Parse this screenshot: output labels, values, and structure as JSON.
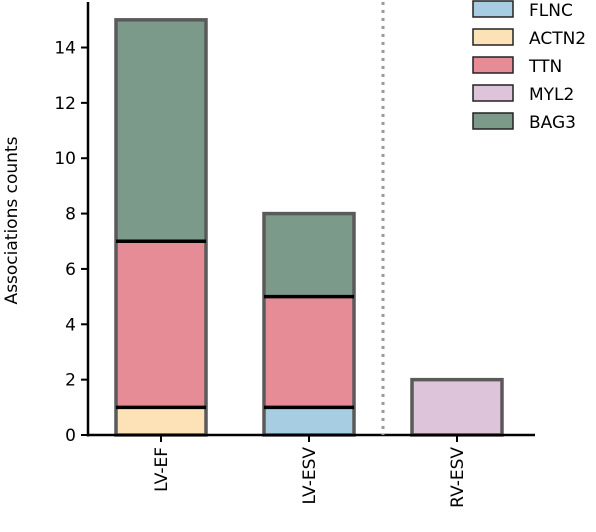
{
  "chart_data": {
    "type": "bar",
    "stacked": true,
    "categories": [
      "LV-EF",
      "LV-ESV",
      "RV-ESV"
    ],
    "series": [
      {
        "name": "FLNC",
        "color": "#a6cde1",
        "values": [
          0,
          1,
          0
        ]
      },
      {
        "name": "ACTN2",
        "color": "#fde2b8",
        "values": [
          1,
          0,
          0
        ]
      },
      {
        "name": "TTN",
        "color": "#e68c97",
        "values": [
          6,
          4,
          0
        ]
      },
      {
        "name": "MYL2",
        "color": "#ddc4da",
        "values": [
          0,
          0,
          2
        ]
      },
      {
        "name": "BAG3",
        "color": "#7b9a89",
        "values": [
          8,
          3,
          0
        ]
      }
    ],
    "stack_order": [
      "ACTN2",
      "FLNC",
      "TTN",
      "MYL2",
      "BAG3"
    ],
    "ylabel": "Associations counts",
    "xlabel": "",
    "ylim": [
      0,
      15.5
    ],
    "yticks": [
      0,
      2,
      4,
      6,
      8,
      10,
      12,
      14
    ],
    "separator_after_category": "LV-ESV",
    "legend_position": "top-right",
    "grid": false,
    "bar_edge_color": "#5a5a5a",
    "segment_divider_color": "#000000"
  }
}
